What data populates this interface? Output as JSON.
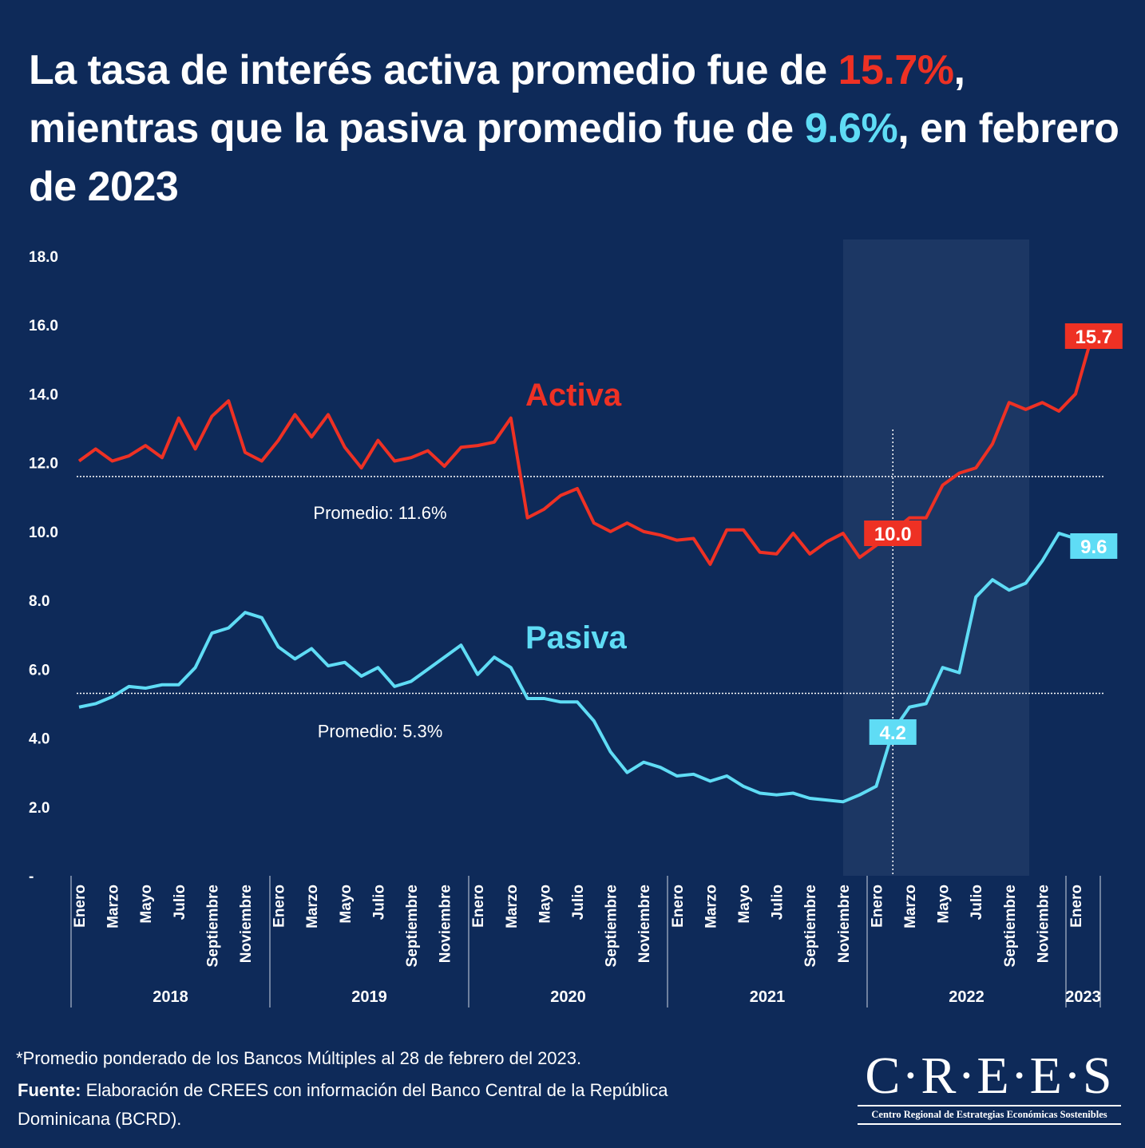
{
  "title": {
    "part1": "La tasa de interés activa promedio fue de ",
    "activa_value": "15.7%",
    "part2": ", mientras que la pasiva promedio fue de ",
    "pasiva_value": "9.6%",
    "part3": ", en febrero de 2023"
  },
  "colors": {
    "background": "#0e2a59",
    "activa": "#ee3124",
    "pasiva": "#5fdcf5",
    "highlight": "#1c3764"
  },
  "chart_data": {
    "type": "line",
    "ylim": [
      0,
      18
    ],
    "yticks": [
      "-",
      "2.0",
      "4.0",
      "6.0",
      "8.0",
      "10.0",
      "12.0",
      "14.0",
      "16.0",
      "18.0"
    ],
    "grid": false,
    "month_labels": [
      "Enero",
      "Marzo",
      "Mayo",
      "Julio",
      "Septiembre",
      "Noviembre"
    ],
    "years": [
      "2018",
      "2019",
      "2020",
      "2021",
      "2022",
      "2023"
    ],
    "x_start": "2018-01",
    "x_end": "2023-02",
    "series": [
      {
        "name": "Activa",
        "color": "#ee3124",
        "average": 11.6,
        "average_label": "Promedio: 11.6%",
        "values": [
          12.05,
          12.4,
          12.05,
          12.2,
          12.5,
          12.15,
          13.3,
          12.4,
          13.35,
          13.8,
          12.3,
          12.05,
          12.65,
          13.4,
          12.75,
          13.4,
          12.45,
          11.85,
          12.65,
          12.05,
          12.15,
          12.35,
          11.9,
          12.45,
          12.5,
          12.6,
          13.3,
          10.4,
          10.65,
          11.05,
          11.25,
          10.25,
          10.0,
          10.25,
          10.0,
          9.9,
          9.75,
          9.8,
          9.05,
          10.05,
          10.05,
          9.4,
          9.35,
          9.95,
          9.35,
          9.7,
          9.95,
          9.25,
          9.6,
          10.0,
          10.4,
          10.4,
          11.35,
          11.7,
          11.85,
          12.55,
          13.75,
          13.55,
          13.75,
          13.5,
          14.0,
          15.7
        ],
        "annotations": [
          {
            "month": "2022-02",
            "label": "10.0"
          },
          {
            "month": "2023-02",
            "label": "15.7"
          }
        ]
      },
      {
        "name": "Pasiva",
        "color": "#5fdcf5",
        "average": 5.3,
        "average_label": "Promedio: 5.3%",
        "values": [
          4.9,
          5.0,
          5.2,
          5.5,
          5.45,
          5.55,
          5.55,
          6.05,
          7.05,
          7.2,
          7.65,
          7.5,
          6.65,
          6.3,
          6.6,
          6.1,
          6.2,
          5.8,
          6.05,
          5.5,
          5.65,
          6.0,
          6.35,
          6.7,
          5.85,
          6.35,
          6.05,
          5.15,
          5.15,
          5.05,
          5.05,
          4.5,
          3.6,
          3.0,
          3.3,
          3.15,
          2.9,
          2.95,
          2.75,
          2.9,
          2.6,
          2.4,
          2.35,
          2.4,
          2.25,
          2.2,
          2.15,
          2.35,
          2.6,
          4.2,
          4.9,
          5.0,
          6.05,
          5.9,
          8.1,
          8.6,
          8.3,
          8.5,
          9.15,
          9.95,
          9.8,
          9.6
        ],
        "annotations": [
          {
            "month": "2022-02",
            "label": "4.2"
          },
          {
            "month": "2023-02",
            "label": "9.6"
          }
        ]
      }
    ]
  },
  "footnote": "*Promedio ponderado de los Bancos Múltiples al 28 de febrero del 2023.",
  "source_label": "Fuente:",
  "source_text": " Elaboración de CREES con información del Banco Central de la República Dominicana (BCRD).",
  "logo": {
    "name": "C·R·E·E·S",
    "subtitle": "Centro Regional de Estrategias Económicas Sostenibles"
  }
}
